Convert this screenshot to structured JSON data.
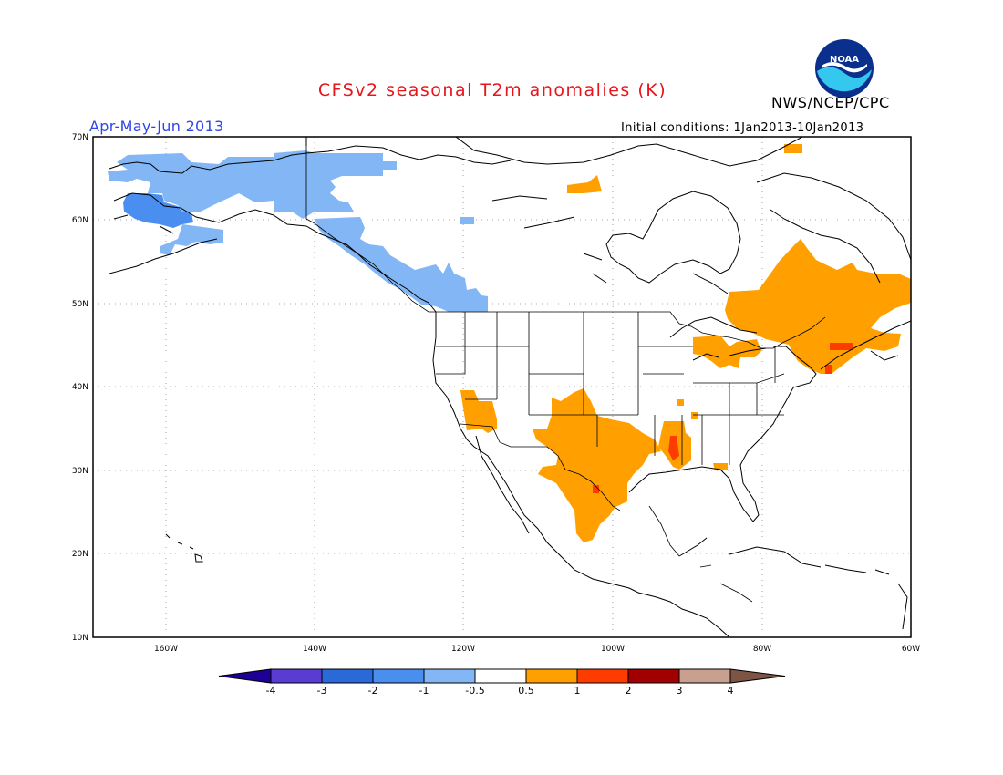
{
  "title": "CFSv2 seasonal T2m anomalies (K)",
  "agency": "NWS/NCEP/CPC",
  "logo_text": "NOAA",
  "period": "Apr-May-Jun 2013",
  "initial_conditions": "Initial conditions: 1Jan2013-10Jan2013",
  "map": {
    "lon_range": [
      -172,
      -60
    ],
    "lat_range": [
      10,
      70
    ],
    "lat_ticks": [
      "10N",
      "20N",
      "30N",
      "40N",
      "50N",
      "60N",
      "70N"
    ],
    "lon_ticks": [
      "160W",
      "140W",
      "120W",
      "100W",
      "80W",
      "60W"
    ],
    "grid": true,
    "anomaly_regions": [
      {
        "name": "Alaska / NW Canada",
        "category": "-1 to -0.5"
      },
      {
        "name": "Southwest Alaska",
        "category": "-2 to -1"
      },
      {
        "name": "British Columbia coast",
        "category": "-1 to -0.5"
      },
      {
        "name": "Arizona",
        "category": "0.5 to 1"
      },
      {
        "name": "Texas / New Mexico / Northern Mexico",
        "category": "0.5 to 1"
      },
      {
        "name": "Lower Mississippi",
        "category": "0.5 to 1"
      },
      {
        "name": "Great Lakes",
        "category": "0.5 to 1"
      },
      {
        "name": "Quebec / Ontario / Maritimes",
        "category": "0.5 to 1"
      },
      {
        "name": "New England",
        "category": "1 to 2"
      },
      {
        "name": "Central Canadian Arctic",
        "category": "0.5 to 1"
      }
    ]
  },
  "legend": {
    "labels": [
      "-4",
      "-3",
      "-2",
      "-1",
      "-0.5",
      "0.5",
      "1",
      "2",
      "3",
      "4"
    ],
    "colors": [
      "#1e0096",
      "#5a3cd2",
      "#2a69d8",
      "#4a8ef0",
      "#82b6f5",
      "#ffffff",
      "#ffa000",
      "#ff3c00",
      "#a00000",
      "#c8a090",
      "#7d5544"
    ]
  }
}
